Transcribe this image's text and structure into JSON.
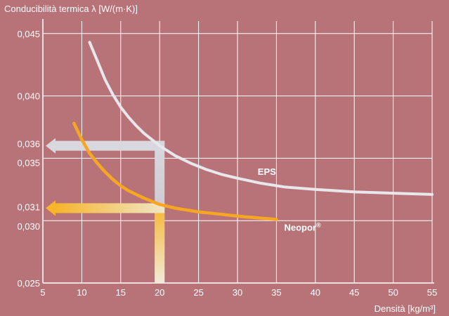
{
  "chart_data": {
    "type": "line",
    "ylabel": "Conducibilità termica  λ  [W/(m·K)]",
    "xlabel": "Densità [kg/m³]",
    "xlim": [
      5,
      55
    ],
    "ylim": [
      0.025,
      0.046
    ],
    "x_ticks": [
      5,
      10,
      15,
      20,
      25,
      30,
      35,
      40,
      45,
      50,
      55
    ],
    "x_tick_labels": [
      "5",
      "10",
      "15",
      "20",
      "25",
      "30",
      "35",
      "40",
      "45",
      "50",
      "55"
    ],
    "y_ticks": [
      0.025,
      0.03,
      0.031,
      0.035,
      0.036,
      0.04,
      0.045
    ],
    "y_tick_labels": [
      "0,025",
      "0,030",
      "0,031",
      "0,035",
      "0,036",
      "0,040",
      "0,045"
    ],
    "grid": true,
    "series": [
      {
        "name": "EPS",
        "color": "#e8e8ec",
        "x": [
          11,
          12,
          13,
          14,
          15,
          16,
          17,
          18,
          19,
          20,
          22,
          24,
          26,
          28,
          30,
          33,
          36,
          40,
          45,
          50,
          55
        ],
        "y": [
          0.0443,
          0.0428,
          0.0413,
          0.0401,
          0.0391,
          0.0383,
          0.0376,
          0.037,
          0.0365,
          0.036,
          0.0352,
          0.0346,
          0.0341,
          0.0337,
          0.0334,
          0.033,
          0.0327,
          0.0325,
          0.0323,
          0.0322,
          0.0321
        ]
      },
      {
        "name": "Neopor®",
        "color": "#f5a623",
        "x": [
          9,
          10,
          11,
          12,
          13,
          14,
          15,
          16,
          18,
          20,
          22,
          25,
          28,
          31,
          35
        ],
        "y": [
          0.0378,
          0.0365,
          0.0354,
          0.0346,
          0.0339,
          0.0333,
          0.0328,
          0.0324,
          0.0318,
          0.0313,
          0.031,
          0.0307,
          0.0305,
          0.0303,
          0.0301
        ]
      }
    ],
    "annotations": [
      {
        "series": "EPS",
        "x": 20,
        "y": 0.036,
        "color": "#d8d8de"
      },
      {
        "series": "Neopor®",
        "x": 20,
        "y": 0.031,
        "color": "#f7c04a"
      }
    ]
  }
}
